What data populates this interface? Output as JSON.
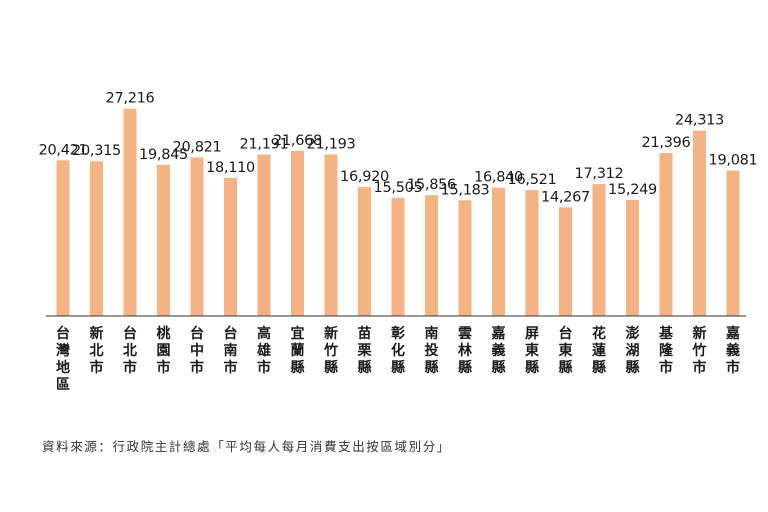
{
  "colors": {
    "bar": "#f4b382",
    "axis": "#333333",
    "text": "#1a1a1a"
  },
  "chart_data": {
    "type": "bar",
    "categories": [
      "台灣地區",
      "新北市",
      "台北市",
      "桃園市",
      "台中市",
      "台南市",
      "高雄市",
      "宜蘭縣",
      "新竹縣",
      "苗栗縣",
      "彰化縣",
      "南投縣",
      "雲林縣",
      "嘉義縣",
      "屏東縣",
      "台東縣",
      "花蓮縣",
      "澎湖縣",
      "基隆市",
      "新竹市",
      "嘉義市"
    ],
    "values": [
      20421,
      20315,
      27216,
      19845,
      20821,
      18110,
      21191,
      21668,
      21193,
      16920,
      15505,
      15856,
      15183,
      16840,
      16521,
      14267,
      17312,
      15249,
      21396,
      24313,
      19081
    ],
    "value_labels": [
      "20,421",
      "20,315",
      "27,216",
      "19,845",
      "20,821",
      "18,110",
      "21,191",
      "21,668",
      "21,193",
      "16,920",
      "15,505",
      "15,856",
      "15,183",
      "16,840",
      "16,521",
      "14,267",
      "17,312",
      "15,249",
      "21,396",
      "24,313",
      "19,081"
    ],
    "title": "",
    "xlabel": "",
    "ylabel": "",
    "ylim": [
      0,
      29000
    ],
    "grid": false,
    "legend": "none"
  },
  "source_note": "資料來源：行政院主計總處「平均每人每月消費支出按區域別分」"
}
